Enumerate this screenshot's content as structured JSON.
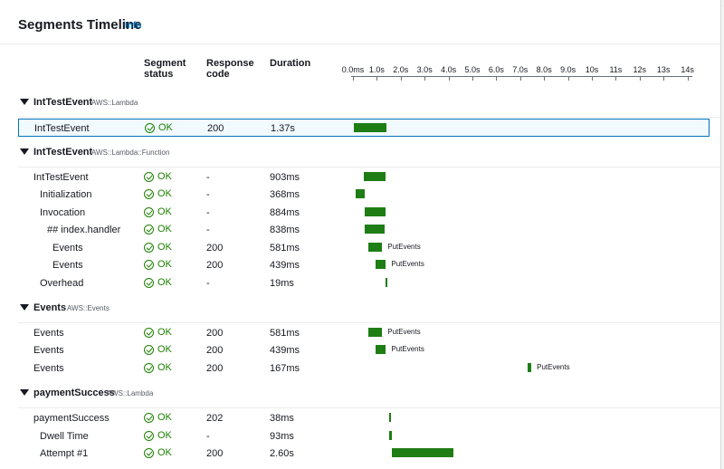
{
  "panel": {
    "title": "Segments Timeline",
    "info": "Info"
  },
  "columns": {
    "status": "Segment\nstatus",
    "code": "Response\ncode",
    "duration": "Duration"
  },
  "axis": [
    "0.0ms",
    "1.0s",
    "2.0s",
    "3.0s",
    "4.0s",
    "5.0s",
    "6.0s",
    "7.0s",
    "8.0s",
    "9.0s",
    "10s",
    "11s",
    "12s",
    "13s",
    "14s"
  ],
  "groups": [
    {
      "name": "IntTestEvent",
      "type": "AWS::Lambda",
      "rows": [
        {
          "name": "IntTestEvent",
          "indent": 0,
          "status": "OK",
          "code": "200",
          "duration": "1.37s",
          "start_s": 0.0,
          "dur_s": 1.37,
          "selected": true
        }
      ]
    },
    {
      "name": "IntTestEvent",
      "type": "AWS::Lambda::Function",
      "rows": [
        {
          "name": "IntTestEvent",
          "indent": 0,
          "status": "OK",
          "code": "-",
          "duration": "903ms",
          "start_s": 0.46,
          "dur_s": 0.903
        },
        {
          "name": "Initialization",
          "indent": 1,
          "status": "OK",
          "code": "-",
          "duration": "368ms",
          "start_s": 0.11,
          "dur_s": 0.368
        },
        {
          "name": "Invocation",
          "indent": 1,
          "status": "OK",
          "code": "-",
          "duration": "884ms",
          "start_s": 0.48,
          "dur_s": 0.884
        },
        {
          "name": "## index.handler",
          "indent": 2,
          "status": "OK",
          "code": "-",
          "duration": "838ms",
          "start_s": 0.5,
          "dur_s": 0.838
        },
        {
          "name": "Events",
          "indent": 3,
          "status": "OK",
          "code": "200",
          "duration": "581ms",
          "start_s": 0.64,
          "dur_s": 0.581,
          "label": "PutEvents"
        },
        {
          "name": "Events",
          "indent": 3,
          "status": "OK",
          "code": "200",
          "duration": "439ms",
          "start_s": 0.94,
          "dur_s": 0.439,
          "label": "PutEvents"
        },
        {
          "name": "Overhead",
          "indent": 1,
          "status": "OK",
          "code": "-",
          "duration": "19ms",
          "start_s": 1.35,
          "dur_s": 0.019
        }
      ]
    },
    {
      "name": "Events",
      "type": "AWS::Events",
      "rows": [
        {
          "name": "Events",
          "indent": 0,
          "status": "OK",
          "code": "200",
          "duration": "581ms",
          "start_s": 0.64,
          "dur_s": 0.581,
          "label": "PutEvents"
        },
        {
          "name": "Events",
          "indent": 0,
          "status": "OK",
          "code": "200",
          "duration": "439ms",
          "start_s": 0.94,
          "dur_s": 0.439,
          "label": "PutEvents"
        },
        {
          "name": "Events",
          "indent": 0,
          "status": "OK",
          "code": "200",
          "duration": "167ms",
          "start_s": 7.3,
          "dur_s": 0.167,
          "label": "PutEvents"
        }
      ]
    },
    {
      "name": "paymentSuccess",
      "type": "AWS::Lambda",
      "rows": [
        {
          "name": "paymentSuccess",
          "indent": 0,
          "status": "OK",
          "code": "202",
          "duration": "38ms",
          "start_s": 1.52,
          "dur_s": 0.038
        },
        {
          "name": "Dwell Time",
          "indent": 1,
          "status": "OK",
          "code": "-",
          "duration": "93ms",
          "start_s": 1.52,
          "dur_s": 0.093
        },
        {
          "name": "Attempt #1",
          "indent": 1,
          "status": "OK",
          "code": "200",
          "duration": "2.60s",
          "start_s": 1.62,
          "dur_s": 2.6
        }
      ]
    }
  ]
}
